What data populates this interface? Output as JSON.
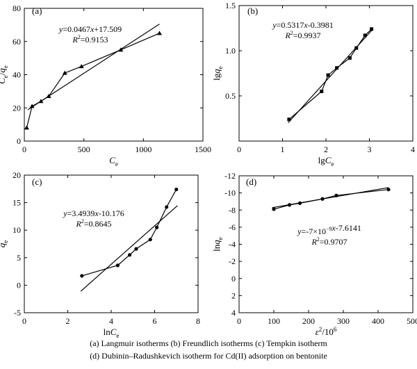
{
  "chart_data": [
    {
      "type": "scatter",
      "panel_label": "(a)",
      "xlabel_main": "C",
      "xlabel_sub": "e",
      "ylabel_main": "C",
      "ylabel_sub": "e",
      "ylabel_sep": "/",
      "ylabel_main2": "q",
      "ylabel_sub2": "e",
      "xlim": [
        0,
        1500
      ],
      "ylim": [
        0,
        80
      ],
      "xticks": [
        0,
        500,
        1000,
        1500
      ],
      "yticks": [
        0,
        20,
        40,
        60,
        80
      ],
      "eq_line1": "y=0.0467x+17.509",
      "eq_line2": "R2=0.9153",
      "fit": {
        "slope": 0.0467,
        "intercept": 17.509,
        "x_range": [
          30,
          1135
        ]
      },
      "series": [
        {
          "marker": "triangle",
          "x": [
            20,
            65,
            140,
            205,
            340,
            480,
            810,
            1135
          ],
          "y": [
            8,
            21,
            24,
            27,
            41,
            45,
            55,
            65
          ]
        }
      ]
    },
    {
      "type": "scatter",
      "panel_label": "(b)",
      "xlabel_main": "lgC",
      "xlabel_sub": "e",
      "ylabel_main": "lgq",
      "ylabel_sub": "e",
      "xlim": [
        0,
        4
      ],
      "ylim": [
        0,
        1.5
      ],
      "xticks": [
        0,
        1,
        2,
        3,
        4
      ],
      "yticks": [
        0.5,
        1.0,
        1.5
      ],
      "eq_line1": "y=0.5317x-0.3981",
      "eq_line2": "R2=0.9937",
      "fit": {
        "slope": 0.5317,
        "intercept": -0.3981,
        "x_range": [
          1.13,
          3.05
        ]
      },
      "series": [
        {
          "marker": "square",
          "x": [
            1.15,
            1.9,
            2.05,
            2.25,
            2.55,
            2.7,
            2.9,
            3.05
          ],
          "y": [
            0.24,
            0.55,
            0.73,
            0.81,
            0.92,
            1.03,
            1.17,
            1.24
          ]
        }
      ]
    },
    {
      "type": "scatter",
      "panel_label": "(c)",
      "xlabel_main": "lnC",
      "xlabel_sub": "e",
      "ylabel_main": "q",
      "ylabel_sub": "e",
      "xlim": [
        0,
        8
      ],
      "ylim": [
        -5,
        20
      ],
      "xticks": [
        0,
        2,
        4,
        6,
        8
      ],
      "yticks": [
        -5,
        0,
        5,
        10,
        15,
        20
      ],
      "eq_line1": "y=3.4939x-10.176",
      "eq_line2": "R2=0.8645",
      "fit": {
        "slope": 3.4939,
        "intercept": -10.176,
        "x_range": [
          2.6,
          7.05
        ]
      },
      "series": [
        {
          "marker": "circle",
          "x": [
            2.65,
            4.3,
            4.85,
            5.15,
            5.8,
            6.1,
            6.55,
            7.0
          ],
          "y": [
            1.7,
            3.6,
            5.5,
            6.6,
            8.3,
            10.5,
            14.2,
            17.4
          ]
        }
      ]
    },
    {
      "type": "scatter",
      "panel_label": "(d)",
      "xlabel_main": "ε",
      "xlabel_sup": "2",
      "xlabel_rest": "/10",
      "xlabel_sup2": "6",
      "ylabel_main": "lnq",
      "ylabel_sub": "e",
      "xlim": [
        0,
        500
      ],
      "ylim": [
        -12,
        4
      ],
      "y_reversed": true,
      "xticks": [
        0,
        100,
        200,
        300,
        400,
        500
      ],
      "yticks": [
        -12,
        -10,
        -8,
        -6,
        -4,
        -2,
        0,
        2,
        4
      ],
      "eq_line1": "y=-7×10-9x-7.6141",
      "eq_line2": "R2=0.9707",
      "fit": {
        "slope": -0.007,
        "intercept": -7.6141,
        "x_range": [
          95,
          430
        ]
      },
      "series": [
        {
          "marker": "circle",
          "x": [
            100,
            145,
            175,
            240,
            280,
            430
          ],
          "y": [
            -8.1,
            -8.6,
            -8.8,
            -9.3,
            -9.7,
            -10.4
          ]
        }
      ]
    }
  ],
  "caption": {
    "line1": "(a) Langmuir isotherms   (b) Freundlich isotherms   (c) Tempkin isotherm",
    "line2": "(d) Dubinin–Radushkevich isotherm for Cd(II) adsorption on bentonite"
  }
}
